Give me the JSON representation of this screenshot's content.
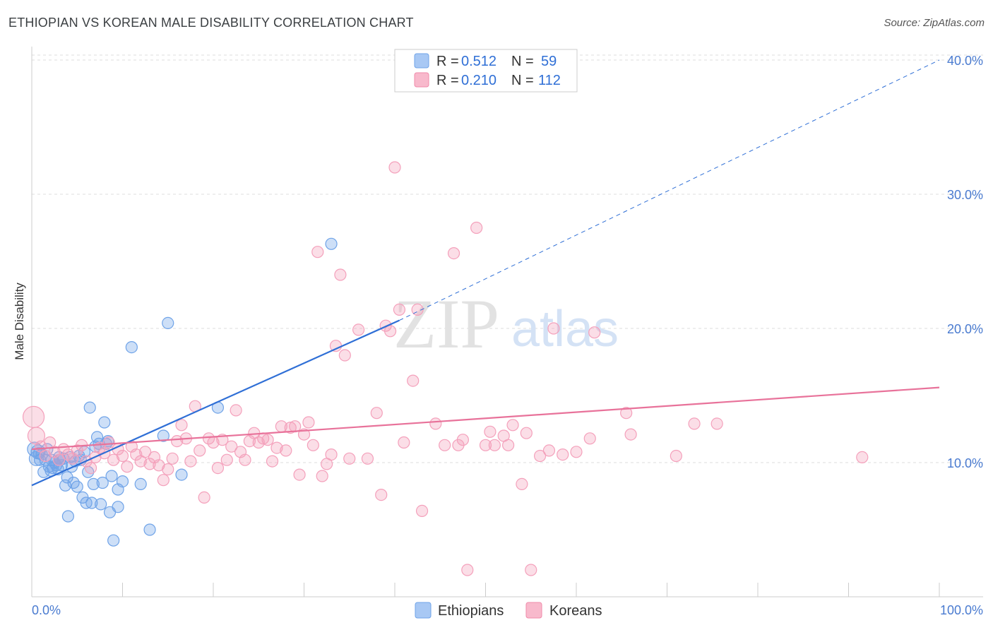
{
  "header": {
    "title": "ETHIOPIAN VS KOREAN MALE DISABILITY CORRELATION CHART",
    "source": "Source: ZipAtlas.com"
  },
  "watermark": {
    "zip": "ZIP",
    "atlas": "atlas"
  },
  "legend": {
    "series": [
      {
        "r_label": "R =",
        "r_value": "0.512",
        "n_label": "N =",
        "n_value": "59",
        "color": "#a8c8f4"
      },
      {
        "r_label": "R =",
        "r_value": "0.210",
        "n_label": "N =",
        "n_value": "112",
        "color": "#f8b9cc"
      }
    ]
  },
  "chart_data": {
    "type": "scatter",
    "title": "ETHIOPIAN VS KOREAN MALE DISABILITY CORRELATION CHART",
    "xlabel": "",
    "ylabel": "Male Disability",
    "xlim": [
      0,
      100
    ],
    "ylim": [
      0,
      41
    ],
    "x_tick_labels": [
      "0.0%",
      "100.0%"
    ],
    "y_ticks": [
      10,
      20,
      30,
      40
    ],
    "y_tick_labels": [
      "10.0%",
      "20.0%",
      "30.0%",
      "40.0%"
    ],
    "series": [
      {
        "name": "Ethiopians",
        "color": "#6fa3e8",
        "line_color": "#2f6fd6",
        "trend": {
          "x": [
            0,
            40.5
          ],
          "y": [
            8.3,
            20.6
          ],
          "extend_to": [
            100,
            40.0
          ]
        },
        "points": [
          [
            0.3,
            11.0
          ],
          [
            0.5,
            10.3
          ],
          [
            0.7,
            10.8
          ],
          [
            0.9,
            10.2
          ],
          [
            1.1,
            10.6
          ],
          [
            1.3,
            9.3
          ],
          [
            1.5,
            10.2
          ],
          [
            1.7,
            11.0
          ],
          [
            1.9,
            9.7
          ],
          [
            2.1,
            9.4
          ],
          [
            2.3,
            9.6
          ],
          [
            2.5,
            10.0
          ],
          [
            2.7,
            9.8
          ],
          [
            2.9,
            9.5
          ],
          [
            3.1,
            10.2
          ],
          [
            3.3,
            9.8
          ],
          [
            3.5,
            10.3
          ],
          [
            3.7,
            8.3
          ],
          [
            3.9,
            8.9
          ],
          [
            4.0,
            6.0
          ],
          [
            4.2,
            10.4
          ],
          [
            4.4,
            9.7
          ],
          [
            4.6,
            8.5
          ],
          [
            4.8,
            10.1
          ],
          [
            5.0,
            8.2
          ],
          [
            5.2,
            10.5
          ],
          [
            5.4,
            10.2
          ],
          [
            5.6,
            7.4
          ],
          [
            5.8,
            10.8
          ],
          [
            6.0,
            7.0
          ],
          [
            6.2,
            9.3
          ],
          [
            6.4,
            14.1
          ],
          [
            6.6,
            7.0
          ],
          [
            6.8,
            8.4
          ],
          [
            7.0,
            11.2
          ],
          [
            7.2,
            11.9
          ],
          [
            7.4,
            11.4
          ],
          [
            7.6,
            6.9
          ],
          [
            7.8,
            8.5
          ],
          [
            8.0,
            13.0
          ],
          [
            8.2,
            11.4
          ],
          [
            8.4,
            11.6
          ],
          [
            8.6,
            6.3
          ],
          [
            8.8,
            9.0
          ],
          [
            9.0,
            4.2
          ],
          [
            9.5,
            6.7
          ],
          [
            9.5,
            8.0
          ],
          [
            10.0,
            8.6
          ],
          [
            11.0,
            18.6
          ],
          [
            12.0,
            8.4
          ],
          [
            13.0,
            5.0
          ],
          [
            14.5,
            12.0
          ],
          [
            15.0,
            20.4
          ],
          [
            16.5,
            9.1
          ],
          [
            20.5,
            14.1
          ],
          [
            33.0,
            26.3
          ],
          [
            2.2,
            10.2
          ],
          [
            3.0,
            10.4
          ],
          [
            0.8,
            10.7
          ]
        ]
      },
      {
        "name": "Koreans",
        "color": "#f4a0bb",
        "line_color": "#e8729a",
        "trend": {
          "x": [
            0,
            100
          ],
          "y": [
            11.0,
            15.6
          ]
        },
        "points": [
          [
            0.2,
            13.4
          ],
          [
            0.5,
            12.0
          ],
          [
            1.0,
            11.2
          ],
          [
            1.5,
            10.5
          ],
          [
            2.0,
            11.5
          ],
          [
            2.5,
            10.8
          ],
          [
            3.0,
            10.2
          ],
          [
            3.5,
            11.0
          ],
          [
            4.0,
            10.6
          ],
          [
            4.5,
            10.3
          ],
          [
            5.0,
            10.9
          ],
          [
            5.5,
            11.3
          ],
          [
            6.0,
            10.1
          ],
          [
            6.5,
            9.6
          ],
          [
            7.0,
            10.4
          ],
          [
            7.5,
            11.1
          ],
          [
            8.0,
            10.7
          ],
          [
            8.5,
            11.5
          ],
          [
            9.0,
            10.2
          ],
          [
            9.5,
            11.0
          ],
          [
            10.0,
            10.5
          ],
          [
            10.5,
            9.7
          ],
          [
            11.0,
            11.2
          ],
          [
            11.5,
            10.6
          ],
          [
            12.0,
            10.1
          ],
          [
            12.5,
            10.8
          ],
          [
            13.0,
            9.9
          ],
          [
            13.5,
            10.4
          ],
          [
            14.0,
            9.8
          ],
          [
            14.5,
            8.7
          ],
          [
            15.0,
            9.5
          ],
          [
            15.5,
            10.3
          ],
          [
            16.0,
            11.6
          ],
          [
            16.5,
            12.8
          ],
          [
            17.0,
            11.8
          ],
          [
            17.5,
            10.1
          ],
          [
            18.0,
            14.2
          ],
          [
            18.5,
            10.9
          ],
          [
            19.0,
            7.4
          ],
          [
            19.5,
            11.8
          ],
          [
            20.0,
            11.5
          ],
          [
            20.5,
            9.6
          ],
          [
            21.0,
            11.7
          ],
          [
            21.5,
            10.2
          ],
          [
            22.0,
            11.2
          ],
          [
            22.5,
            13.9
          ],
          [
            23.0,
            10.8
          ],
          [
            23.5,
            10.2
          ],
          [
            24.0,
            11.6
          ],
          [
            24.5,
            12.2
          ],
          [
            25.0,
            11.5
          ],
          [
            25.5,
            11.8
          ],
          [
            26.0,
            11.7
          ],
          [
            26.5,
            10.1
          ],
          [
            27.0,
            11.1
          ],
          [
            27.5,
            12.7
          ],
          [
            28.0,
            10.9
          ],
          [
            28.5,
            12.6
          ],
          [
            29.0,
            12.7
          ],
          [
            29.5,
            9.1
          ],
          [
            30.0,
            12.1
          ],
          [
            30.5,
            13.0
          ],
          [
            31.0,
            11.3
          ],
          [
            31.5,
            25.7
          ],
          [
            32.0,
            9.0
          ],
          [
            32.5,
            9.9
          ],
          [
            33.0,
            10.6
          ],
          [
            33.5,
            18.7
          ],
          [
            34.0,
            24.0
          ],
          [
            34.5,
            18.0
          ],
          [
            35.0,
            10.3
          ],
          [
            36.0,
            19.9
          ],
          [
            37.0,
            10.3
          ],
          [
            38.0,
            13.7
          ],
          [
            38.5,
            7.6
          ],
          [
            39.0,
            20.2
          ],
          [
            39.5,
            19.8
          ],
          [
            40.0,
            32.0
          ],
          [
            40.5,
            21.4
          ],
          [
            41.0,
            11.5
          ],
          [
            42.0,
            16.1
          ],
          [
            42.5,
            21.4
          ],
          [
            43.0,
            6.4
          ],
          [
            44.5,
            12.9
          ],
          [
            45.5,
            11.3
          ],
          [
            46.5,
            25.6
          ],
          [
            47.0,
            11.3
          ],
          [
            47.5,
            11.7
          ],
          [
            48.0,
            2.0
          ],
          [
            49.0,
            27.5
          ],
          [
            50.0,
            11.3
          ],
          [
            50.5,
            12.3
          ],
          [
            51.0,
            11.3
          ],
          [
            52.0,
            12.0
          ],
          [
            52.5,
            11.3
          ],
          [
            53.0,
            12.8
          ],
          [
            54.5,
            12.2
          ],
          [
            55.0,
            2.0
          ],
          [
            56.0,
            10.5
          ],
          [
            57.0,
            10.9
          ],
          [
            57.5,
            20.0
          ],
          [
            58.5,
            10.6
          ],
          [
            60.0,
            10.8
          ],
          [
            61.5,
            11.8
          ],
          [
            62.0,
            19.7
          ],
          [
            65.5,
            13.7
          ],
          [
            66.0,
            12.1
          ],
          [
            71.0,
            10.5
          ],
          [
            73.0,
            12.9
          ],
          [
            75.5,
            12.9
          ],
          [
            91.5,
            10.4
          ],
          [
            54.0,
            8.4
          ]
        ]
      }
    ]
  },
  "bottom_legend": [
    {
      "label": "Ethiopians",
      "color": "#a8c8f4"
    },
    {
      "label": "Koreans",
      "color": "#f8b9cc"
    }
  ]
}
